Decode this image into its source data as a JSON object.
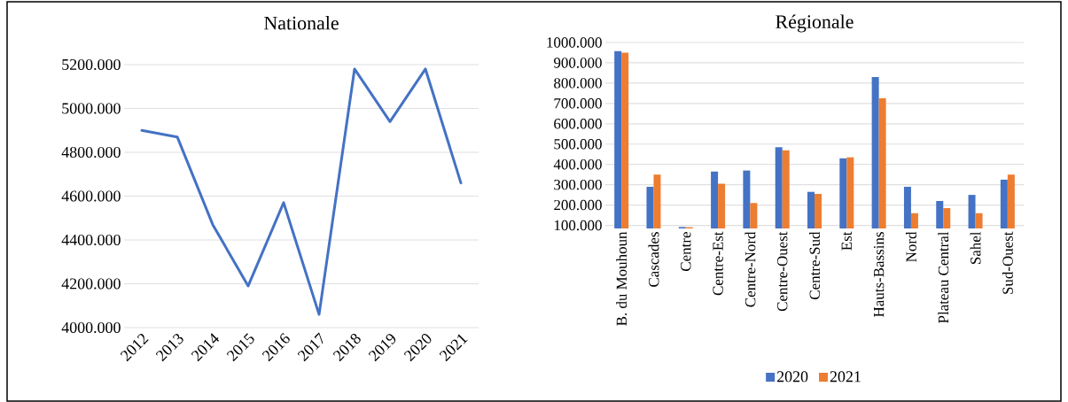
{
  "chart_data": [
    {
      "type": "line",
      "title": "Nationale",
      "categories": [
        "2012",
        "2013",
        "2014",
        "2015",
        "2016",
        "2017",
        "2018",
        "2019",
        "2020",
        "2021"
      ],
      "series": [
        {
          "color": "#4472c4",
          "values": [
            4900,
            4870,
            4470,
            4190,
            4570,
            4060,
            5180,
            4940,
            5180,
            4660
          ]
        }
      ],
      "ylim": [
        4000,
        5200
      ],
      "yticks": [
        {
          "value": 4000,
          "label": "4000.000"
        },
        {
          "value": 4200,
          "label": "4200.000"
        },
        {
          "value": 4400,
          "label": "4400.000"
        },
        {
          "value": 4600,
          "label": "4600.000"
        },
        {
          "value": 4800,
          "label": "4800.000"
        },
        {
          "value": 5000,
          "label": "5000.000"
        },
        {
          "value": 5200,
          "label": "5200.000"
        }
      ],
      "grid": "y",
      "legend": false,
      "marker": "none",
      "line_style": "solid"
    },
    {
      "type": "bar",
      "title": "Régionale",
      "categories": [
        "B. du Mouhoun",
        "Cascades",
        "Centre",
        "Centre-Est",
        "Centre-Nord",
        "Centre-Ouest",
        "Centre-Sud",
        "Est",
        "Hauts-Bassins",
        "Nord",
        "Plateau Central",
        "Sahel",
        "Sud-Ouest"
      ],
      "series": [
        {
          "name": "2020",
          "color": "#4472c4",
          "values": [
            958,
            290,
            92,
            365,
            370,
            485,
            265,
            430,
            830,
            290,
            220,
            250,
            325
          ]
        },
        {
          "name": "2021",
          "color": "#ed7d31",
          "values": [
            950,
            350,
            91,
            305,
            210,
            470,
            255,
            435,
            725,
            160,
            185,
            160,
            350
          ]
        }
      ],
      "ylim": [
        85,
        1000
      ],
      "yticks": [
        {
          "value": 100,
          "label": "100.000"
        },
        {
          "value": 200,
          "label": "200.000"
        },
        {
          "value": 300,
          "label": "300.000"
        },
        {
          "value": 400,
          "label": "400.000"
        },
        {
          "value": 500,
          "label": "500.000"
        },
        {
          "value": 600,
          "label": "600.000"
        },
        {
          "value": 700,
          "label": "700.000"
        },
        {
          "value": 800,
          "label": "800.000"
        },
        {
          "value": 900,
          "label": "900.000"
        },
        {
          "value": 1000,
          "label": "1000.000"
        }
      ],
      "grid": "y",
      "legend": "bottom"
    }
  ]
}
